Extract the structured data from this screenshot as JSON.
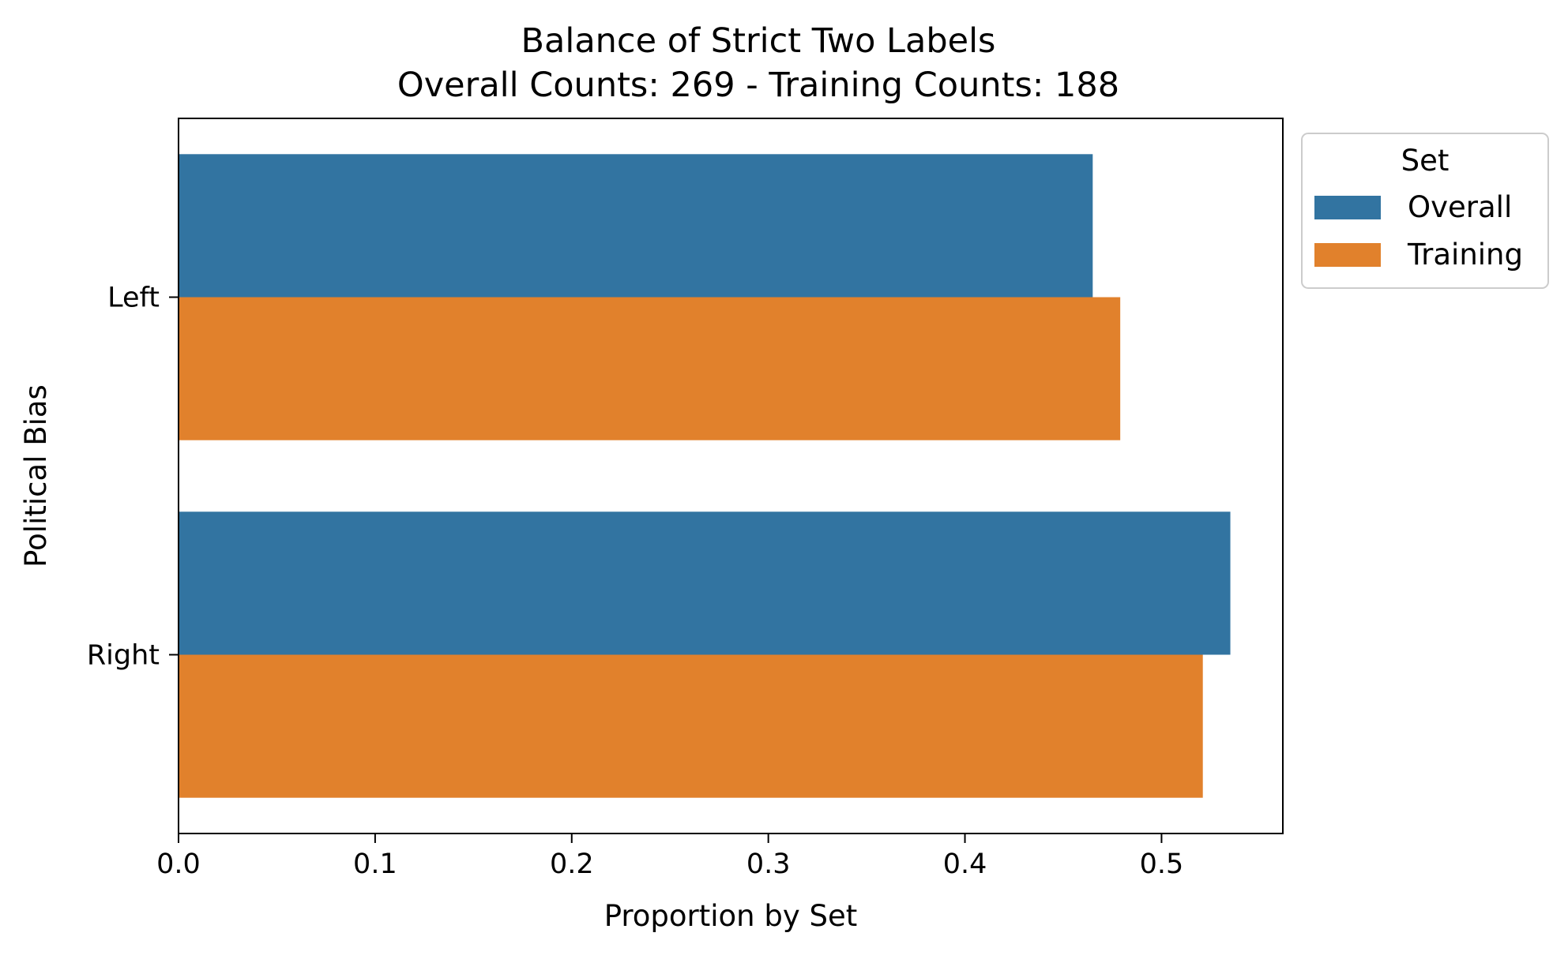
{
  "chart_data": {
    "type": "bar",
    "orientation": "horizontal",
    "title": "Balance of Strict Two Labels",
    "subtitle": "Overall Counts: 269 - Training Counts: 188",
    "xlabel": "Proportion by Set",
    "ylabel": "Political Bias",
    "categories": [
      "Left",
      "Right"
    ],
    "series": [
      {
        "name": "Overall",
        "color": "#3274a1",
        "values": [
          0.465,
          0.535
        ]
      },
      {
        "name": "Training",
        "color": "#e1812c",
        "values": [
          0.479,
          0.521
        ]
      }
    ],
    "xlim": [
      0,
      0.5617
    ],
    "xticks": [
      0.0,
      0.1,
      0.2,
      0.3,
      0.4,
      0.5
    ],
    "xtick_labels": [
      "0.0",
      "0.1",
      "0.2",
      "0.3",
      "0.4",
      "0.5"
    ],
    "grid": false,
    "legend": {
      "title": "Set",
      "placement": "outside-top-right"
    }
  }
}
